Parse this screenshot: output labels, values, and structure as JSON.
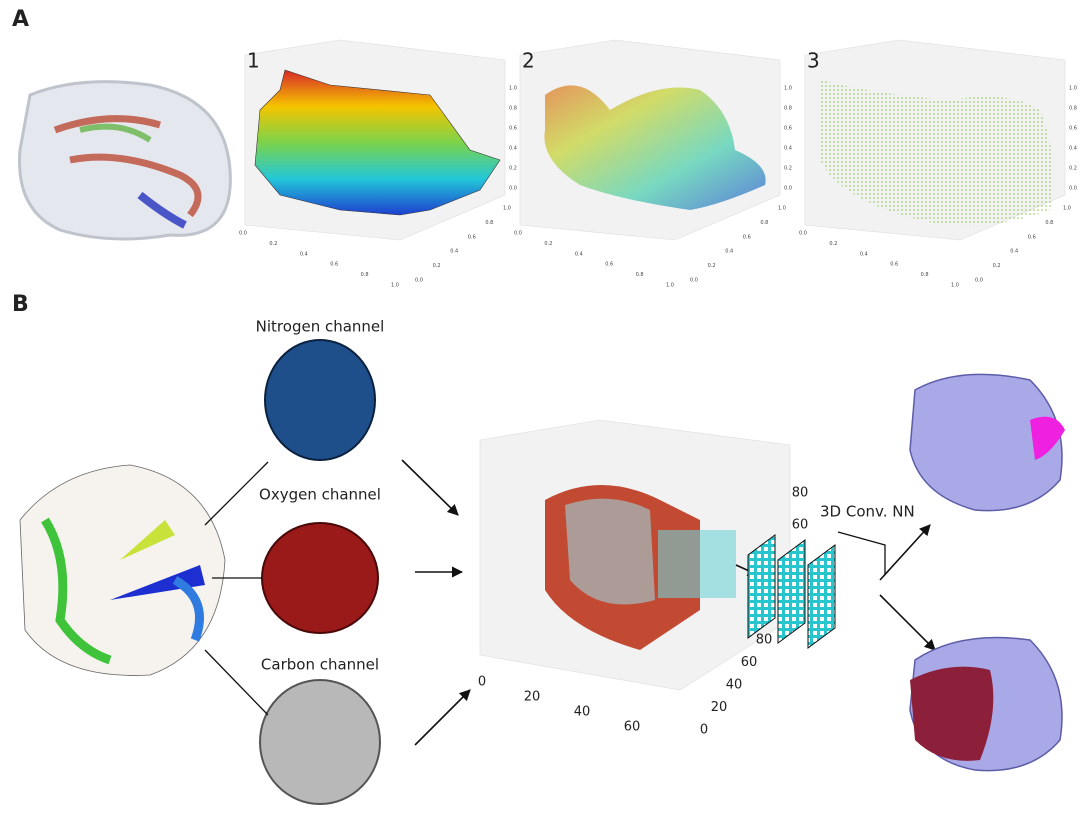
{
  "panel_a": {
    "label": "A",
    "plots": [
      {
        "label": "1",
        "x_ticks": [
          "0.0",
          "0.2",
          "0.4",
          "0.6",
          "0.8",
          "1.0"
        ],
        "y_ticks": [
          "0.0",
          "0.2",
          "0.4",
          "0.6",
          "0.8",
          "1.0"
        ],
        "z_ticks": [
          "0.0",
          "0.2",
          "0.4",
          "0.6",
          "0.8",
          "1.0"
        ]
      },
      {
        "label": "2",
        "x_ticks": [
          "0.0",
          "0.2",
          "0.4",
          "0.6",
          "0.8",
          "1.0"
        ],
        "y_ticks": [
          "0.0",
          "0.2",
          "0.4",
          "0.6",
          "0.8",
          "1.0"
        ],
        "z_ticks": [
          "0.0",
          "0.2",
          "0.4",
          "0.6",
          "0.8",
          "1.0"
        ]
      },
      {
        "label": "3",
        "x_ticks": [
          "0.0",
          "0.2",
          "0.4",
          "0.6",
          "0.8",
          "1.0"
        ],
        "y_ticks": [
          "0.0",
          "0.2",
          "0.4",
          "0.6",
          "0.8",
          "1.0"
        ],
        "z_ticks": [
          "0.0",
          "0.2",
          "0.4",
          "0.6",
          "0.8",
          "1.0"
        ]
      }
    ]
  },
  "panel_b": {
    "label": "B",
    "channels": [
      "Nitrogen channel",
      "Oxygen channel",
      "Carbon channel"
    ],
    "grid_plot": {
      "x_ticks": [
        "0",
        "20",
        "40",
        "60"
      ],
      "y_ticks": [
        "0",
        "20",
        "40",
        "60",
        "80"
      ],
      "z_ticks": [
        "60",
        "80"
      ]
    },
    "network_label": "3D Conv. NN"
  }
}
